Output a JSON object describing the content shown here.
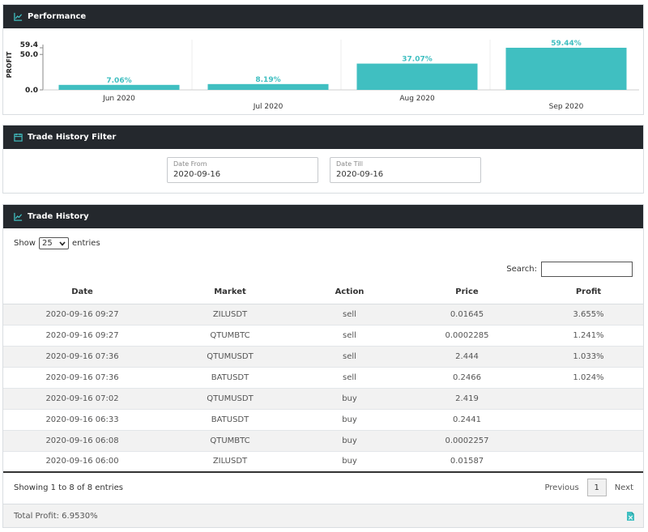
{
  "performance": {
    "title": "Performance",
    "icon": "line-chart-icon",
    "accent": "#40bfc1"
  },
  "chart_data": {
    "type": "bar",
    "ylabel": "PROFIT",
    "ytick_labels": [
      "59.4",
      "50.0",
      "0.0"
    ],
    "yticks": [
      59.4,
      50.0,
      0.0
    ],
    "ylim": [
      0,
      59.4
    ],
    "categories": [
      "Jun 2020",
      "Jul 2020",
      "Aug 2020",
      "Sep 2020"
    ],
    "values": [
      7.06,
      8.19,
      37.07,
      59.44
    ],
    "value_labels": [
      "7.06%",
      "8.19%",
      "37.07%",
      "59.44%"
    ],
    "grid": true,
    "color": "#40bfc1"
  },
  "filter": {
    "title": "Trade History Filter",
    "icon": "calendar-icon",
    "date_from": {
      "label": "Date From",
      "value": "2020-09-16"
    },
    "date_till": {
      "label": "Date Till",
      "value": "2020-09-16"
    }
  },
  "history": {
    "title": "Trade History",
    "icon": "line-chart-icon",
    "show_label": "Show",
    "entries_label": "entries",
    "page_size": "25",
    "search_label": "Search:",
    "columns": [
      "Date",
      "Market",
      "Action",
      "Price",
      "Profit"
    ],
    "rows": [
      [
        "2020-09-16 09:27",
        "ZILUSDT",
        "sell",
        "0.01645",
        "3.655%"
      ],
      [
        "2020-09-16 09:27",
        "QTUMBTC",
        "sell",
        "0.0002285",
        "1.241%"
      ],
      [
        "2020-09-16 07:36",
        "QTUMUSDT",
        "sell",
        "2.444",
        "1.033%"
      ],
      [
        "2020-09-16 07:36",
        "BATUSDT",
        "sell",
        "0.2466",
        "1.024%"
      ],
      [
        "2020-09-16 07:02",
        "QTUMUSDT",
        "buy",
        "2.419",
        ""
      ],
      [
        "2020-09-16 06:33",
        "BATUSDT",
        "buy",
        "0.2441",
        ""
      ],
      [
        "2020-09-16 06:08",
        "QTUMBTC",
        "buy",
        "0.0002257",
        ""
      ],
      [
        "2020-09-16 06:00",
        "ZILUSDT",
        "buy",
        "0.01587",
        ""
      ]
    ],
    "info": "Showing 1 to 8 of 8 entries",
    "previous": "Previous",
    "page": "1",
    "next": "Next",
    "total_profit": "Total Profit: 6.9530%",
    "export_icon": "file-excel-icon"
  }
}
